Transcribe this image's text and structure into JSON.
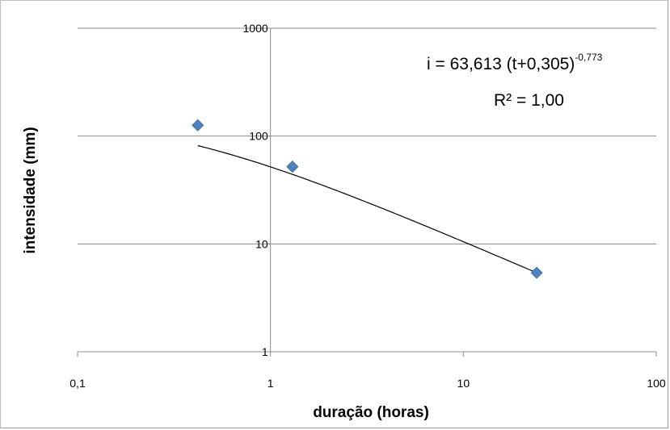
{
  "chart_data": {
    "type": "scatter",
    "x_scale": "log",
    "y_scale": "log",
    "xlim": [
      0.1,
      100
    ],
    "ylim": [
      1,
      1000
    ],
    "xlabel": "duração (horas)",
    "ylabel": "intensidade (mm)",
    "x_ticks": [
      {
        "value": 0.1,
        "label": "0,1"
      },
      {
        "value": 1,
        "label": "1"
      },
      {
        "value": 10,
        "label": "10"
      },
      {
        "value": 100,
        "label": "100"
      }
    ],
    "y_ticks": [
      {
        "value": 1,
        "label": "1"
      },
      {
        "value": 10,
        "label": "10"
      },
      {
        "value": 100,
        "label": "100"
      },
      {
        "value": 1000,
        "label": "1000"
      }
    ],
    "grid": {
      "horizontal": true,
      "vertical": false
    },
    "series": [
      {
        "marker": "diamond",
        "color": "#4f81bd",
        "points": [
          {
            "x": 0.42,
            "y": 126
          },
          {
            "x": 1.3,
            "y": 52
          },
          {
            "x": 24,
            "y": 5.4
          }
        ]
      }
    ],
    "trendline": {
      "color": "#000000",
      "a": 63.613,
      "c": 0.305,
      "b": -0.773,
      "x_range": [
        0.42,
        24
      ]
    },
    "annotations": {
      "equation_main": "i = 63,613 (t+0,305)",
      "equation_exponent": "-0,773",
      "r_squared": "R² = 1,00"
    }
  }
}
